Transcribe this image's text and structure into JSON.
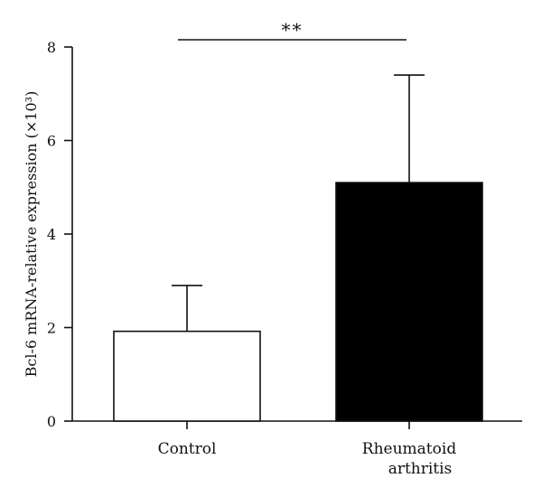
{
  "chart_data": {
    "type": "bar",
    "categories": [
      "Control",
      "Rheumatoid arthritis"
    ],
    "category_lines": [
      [
        "Control"
      ],
      [
        "Rheumatoid",
        "arthritis"
      ]
    ],
    "values": [
      1.92,
      5.1
    ],
    "error_upper": [
      2.9,
      7.4
    ],
    "bar_colors": [
      "#ffffff",
      "#000000"
    ],
    "ylabel": "Bcl-6 mRNA-relative expression (×10³)",
    "ylim": [
      0,
      8
    ],
    "yticks": [
      0,
      2,
      4,
      6,
      8
    ],
    "grid": false,
    "significance": {
      "label": "**",
      "between": [
        0,
        1
      ]
    }
  }
}
